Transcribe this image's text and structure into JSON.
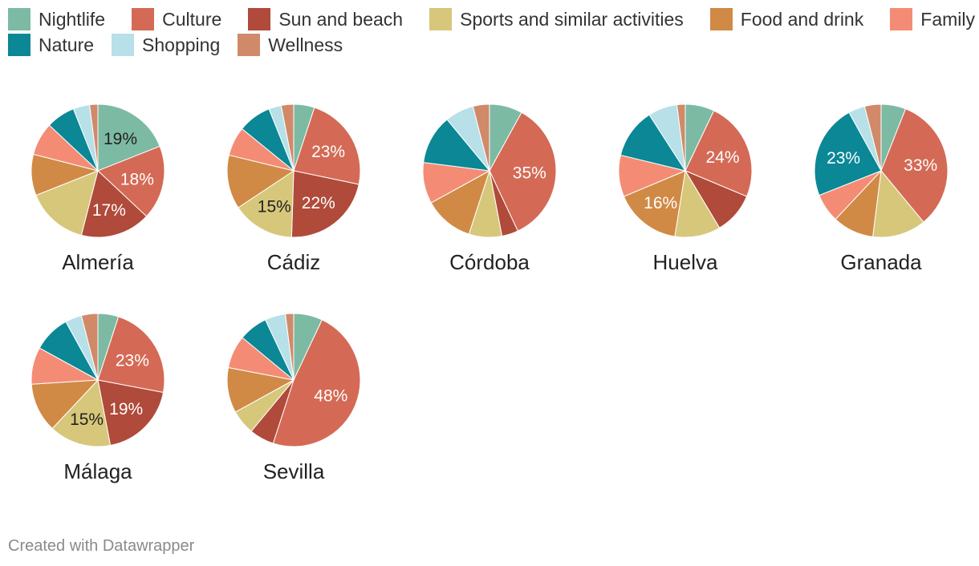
{
  "legend": {
    "items": [
      {
        "label": "Nightlife",
        "color": "#7cbaa3"
      },
      {
        "label": "Culture",
        "color": "#d46a55"
      },
      {
        "label": "Sun and beach",
        "color": "#b04a3a"
      },
      {
        "label": "Sports and similar activities",
        "color": "#d7c77b"
      },
      {
        "label": "Food and drink",
        "color": "#d08a45"
      },
      {
        "label": "Family",
        "color": "#f48c75"
      },
      {
        "label": "Nature",
        "color": "#0b8796"
      },
      {
        "label": "Shopping",
        "color": "#b7e0e8"
      },
      {
        "label": "Wellness",
        "color": "#d08a6a"
      }
    ]
  },
  "chart_data": {
    "type": "pie",
    "categories": [
      "Nightlife",
      "Culture",
      "Sun and beach",
      "Sports and similar activities",
      "Food and drink",
      "Family",
      "Nature",
      "Shopping",
      "Wellness"
    ],
    "pies": [
      {
        "name": "Almería",
        "values": [
          19,
          18,
          17,
          15,
          10,
          8,
          7,
          4,
          2
        ],
        "labels": [
          "19%",
          "18%",
          "17%",
          "",
          "",
          "",
          "",
          "",
          ""
        ]
      },
      {
        "name": "Cádiz",
        "values": [
          5,
          23,
          22,
          15,
          13,
          7,
          8,
          3,
          3
        ],
        "labels": [
          "",
          "23%",
          "22%",
          "15%",
          "",
          "",
          "",
          "",
          ""
        ]
      },
      {
        "name": "Córdoba",
        "values": [
          8,
          35,
          4,
          8,
          12,
          10,
          12,
          7,
          4
        ],
        "labels": [
          "",
          "35%",
          "",
          "",
          "",
          "",
          "",
          "",
          ""
        ]
      },
      {
        "name": "Huelva",
        "values": [
          7,
          24,
          10,
          11,
          16,
          10,
          12,
          7,
          2
        ],
        "labels": [
          "",
          "24%",
          "",
          "",
          "16%",
          "",
          "",
          "",
          ""
        ]
      },
      {
        "name": "Granada",
        "values": [
          6,
          33,
          0,
          13,
          10,
          7,
          23,
          4,
          4
        ],
        "labels": [
          "",
          "33%",
          "",
          "",
          "",
          "",
          "23%",
          "",
          ""
        ]
      },
      {
        "name": "Málaga",
        "values": [
          5,
          23,
          19,
          15,
          12,
          9,
          9,
          4,
          4
        ],
        "labels": [
          "",
          "23%",
          "19%",
          "15%",
          "",
          "",
          "",
          "",
          ""
        ]
      },
      {
        "name": "Sevilla",
        "values": [
          7,
          48,
          6,
          6,
          11,
          8,
          7,
          5,
          2
        ],
        "labels": [
          "",
          "48%",
          "",
          "",
          "",
          "",
          "",
          "",
          ""
        ]
      }
    ]
  },
  "footer": {
    "credit": "Created with Datawrapper"
  }
}
